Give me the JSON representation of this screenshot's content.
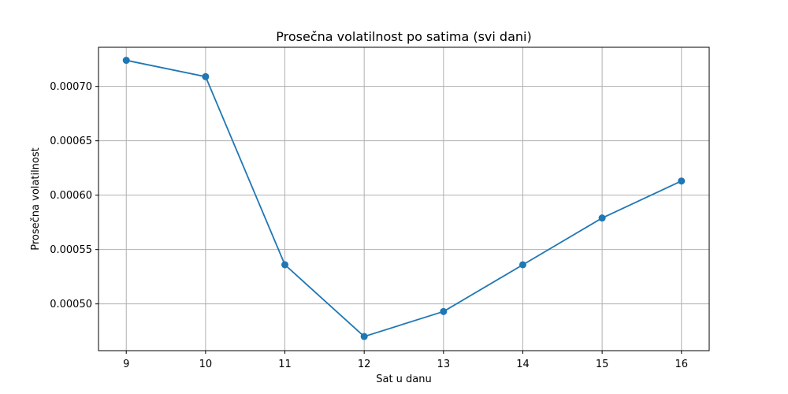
{
  "chart_data": {
    "type": "line",
    "title": "Prosečna volatilnost po satima (svi dani)",
    "xlabel": "Sat u danu",
    "ylabel": "Prosečna volatilnost",
    "x": [
      9,
      10,
      11,
      12,
      13,
      14,
      15,
      16
    ],
    "x_tick_labels": [
      "9",
      "10",
      "11",
      "12",
      "13",
      "14",
      "15",
      "16"
    ],
    "series": [
      {
        "values": [
          0.000724,
          0.000709,
          0.000536,
          0.00047,
          0.000493,
          0.000536,
          0.000579,
          0.000613
        ],
        "color": "#1f77b4",
        "marker": "circle"
      }
    ],
    "y_ticks": [
      0.0005,
      0.00055,
      0.0006,
      0.00065,
      0.0007
    ],
    "y_tick_labels": [
      "0.00050",
      "0.00055",
      "0.00060",
      "0.00065",
      "0.00070"
    ],
    "xlim": [
      8.65,
      16.35
    ],
    "ylim": [
      0.000457,
      0.000736
    ],
    "grid": true,
    "colors": {
      "grid": "#b0b0b0",
      "axis": "#000000"
    }
  }
}
